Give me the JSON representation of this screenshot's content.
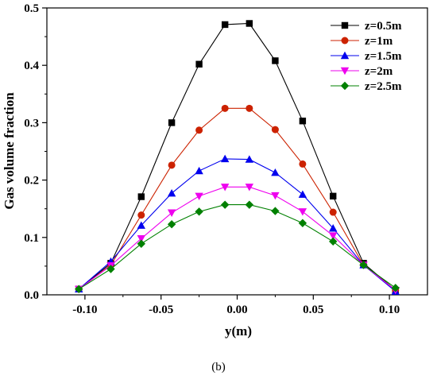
{
  "panel_label": "(b)",
  "chart_data": {
    "type": "line",
    "title": "",
    "xlabel": "y(m)",
    "ylabel": "Gas volume fraction",
    "xlim": [
      -0.125,
      0.125
    ],
    "ylim": [
      0.0,
      0.5
    ],
    "xticks": [
      -0.1,
      -0.05,
      0.0,
      0.05,
      0.1
    ],
    "xtick_labels": [
      "-0.10",
      "-0.05",
      "0.00",
      "0.05",
      "0.10"
    ],
    "yticks": [
      0.0,
      0.1,
      0.2,
      0.3,
      0.4,
      0.5
    ],
    "ytick_labels": [
      "0.0",
      "0.1",
      "0.2",
      "0.3",
      "0.4",
      "0.5"
    ],
    "grid": false,
    "legend_position": "top-right",
    "x": [
      -0.104,
      -0.083,
      -0.063,
      -0.043,
      -0.025,
      -0.008,
      0.008,
      0.025,
      0.043,
      0.063,
      0.083,
      0.104
    ],
    "series": [
      {
        "name": "z=0.5m",
        "color": "#000000",
        "marker": "square",
        "values": [
          0.01,
          0.055,
          0.171,
          0.3,
          0.402,
          0.471,
          0.473,
          0.408,
          0.303,
          0.172,
          0.055,
          0.008
        ]
      },
      {
        "name": "z=1m",
        "color": "#cc2200",
        "marker": "circle",
        "values": [
          0.01,
          0.052,
          0.139,
          0.226,
          0.287,
          0.325,
          0.325,
          0.288,
          0.228,
          0.144,
          0.052,
          0.008
        ]
      },
      {
        "name": "z=1.5m",
        "color": "#0000ee",
        "marker": "triangle-up",
        "values": [
          0.01,
          0.058,
          0.121,
          0.177,
          0.216,
          0.237,
          0.236,
          0.213,
          0.175,
          0.116,
          0.052,
          0.006
        ]
      },
      {
        "name": "z=2m",
        "color": "#ee00ee",
        "marker": "triangle-down",
        "values": [
          0.01,
          0.051,
          0.098,
          0.143,
          0.172,
          0.188,
          0.188,
          0.173,
          0.145,
          0.103,
          0.052,
          0.008
        ]
      },
      {
        "name": "z=2.5m",
        "color": "#008000",
        "marker": "diamond",
        "values": [
          0.01,
          0.045,
          0.089,
          0.123,
          0.145,
          0.157,
          0.157,
          0.146,
          0.125,
          0.093,
          0.052,
          0.012
        ]
      }
    ]
  }
}
